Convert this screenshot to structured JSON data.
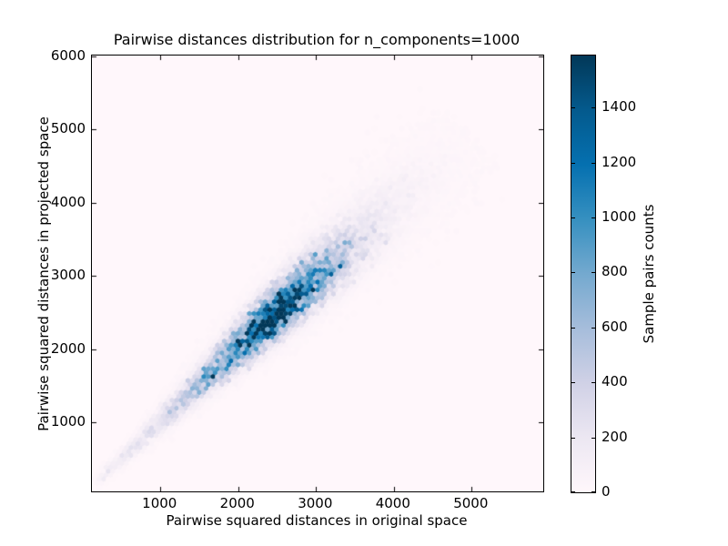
{
  "figure": {
    "title": "Pairwise distances distribution for n_components=1000"
  },
  "chart_data": {
    "type": "hexbin",
    "title": "Pairwise distances distribution for n_components=1000",
    "xlabel": "Pairwise squared distances in original space",
    "ylabel": "Pairwise squared distances in projected space",
    "colorbar_label": "Sample pairs counts",
    "xlim": [
      120,
      5920
    ],
    "ylim": [
      60,
      6010
    ],
    "xticks": [
      1000,
      2000,
      3000,
      4000,
      5000
    ],
    "yticks": [
      1000,
      2000,
      3000,
      4000,
      5000,
      6000
    ],
    "colorbar_ticks": [
      0,
      200,
      400,
      600,
      800,
      1000,
      1200,
      1400
    ],
    "vmin": 0,
    "vmax": 1590,
    "gridsize": 100,
    "grid": false,
    "plot_background": "#fff7fb",
    "colormap": {
      "name": "PuBu",
      "stops": [
        [
          0.0,
          "#fff7fb"
        ],
        [
          0.125,
          "#ece7f2"
        ],
        [
          0.25,
          "#d0d1e6"
        ],
        [
          0.375,
          "#a6bddb"
        ],
        [
          0.5,
          "#74a9cf"
        ],
        [
          0.625,
          "#3690c0"
        ],
        [
          0.75,
          "#0570b0"
        ],
        [
          0.875,
          "#045a8d"
        ],
        [
          1.0,
          "#023858"
        ]
      ]
    },
    "distribution": {
      "description": "Sample-pair counts concentrated in a narrow elongated band along the diagonal y = x, from about (150,150) to (4800,4700); density peaks near (2500,2500) at about 1590 pairs and fades to a very faint tail toward (4800,4650).",
      "relation": "y ~ x",
      "peak": {
        "x": 2500,
        "y": 2500,
        "count": 1590
      },
      "extent_along_diagonal": [
        150,
        5000
      ],
      "diagonal_profile_columns": [
        "t_along_diagonal",
        "peak_count",
        "perpendicular_sigma"
      ],
      "diagonal_profile": [
        [
          150,
          70,
          35
        ],
        [
          400,
          150,
          48
        ],
        [
          700,
          230,
          62
        ],
        [
          1000,
          330,
          78
        ],
        [
          1300,
          460,
          95
        ],
        [
          1600,
          650,
          112
        ],
        [
          1900,
          950,
          128
        ],
        [
          2100,
          1250,
          138
        ],
        [
          2300,
          1500,
          148
        ],
        [
          2500,
          1590,
          155
        ],
        [
          2700,
          1350,
          165
        ],
        [
          2900,
          1020,
          178
        ],
        [
          3100,
          720,
          192
        ],
        [
          3300,
          480,
          205
        ],
        [
          3500,
          300,
          220
        ],
        [
          3700,
          185,
          235
        ],
        [
          3900,
          115,
          250
        ],
        [
          4200,
          62,
          272
        ],
        [
          4500,
          34,
          295
        ],
        [
          4800,
          16,
          315
        ],
        [
          5000,
          0,
          330
        ]
      ]
    }
  }
}
